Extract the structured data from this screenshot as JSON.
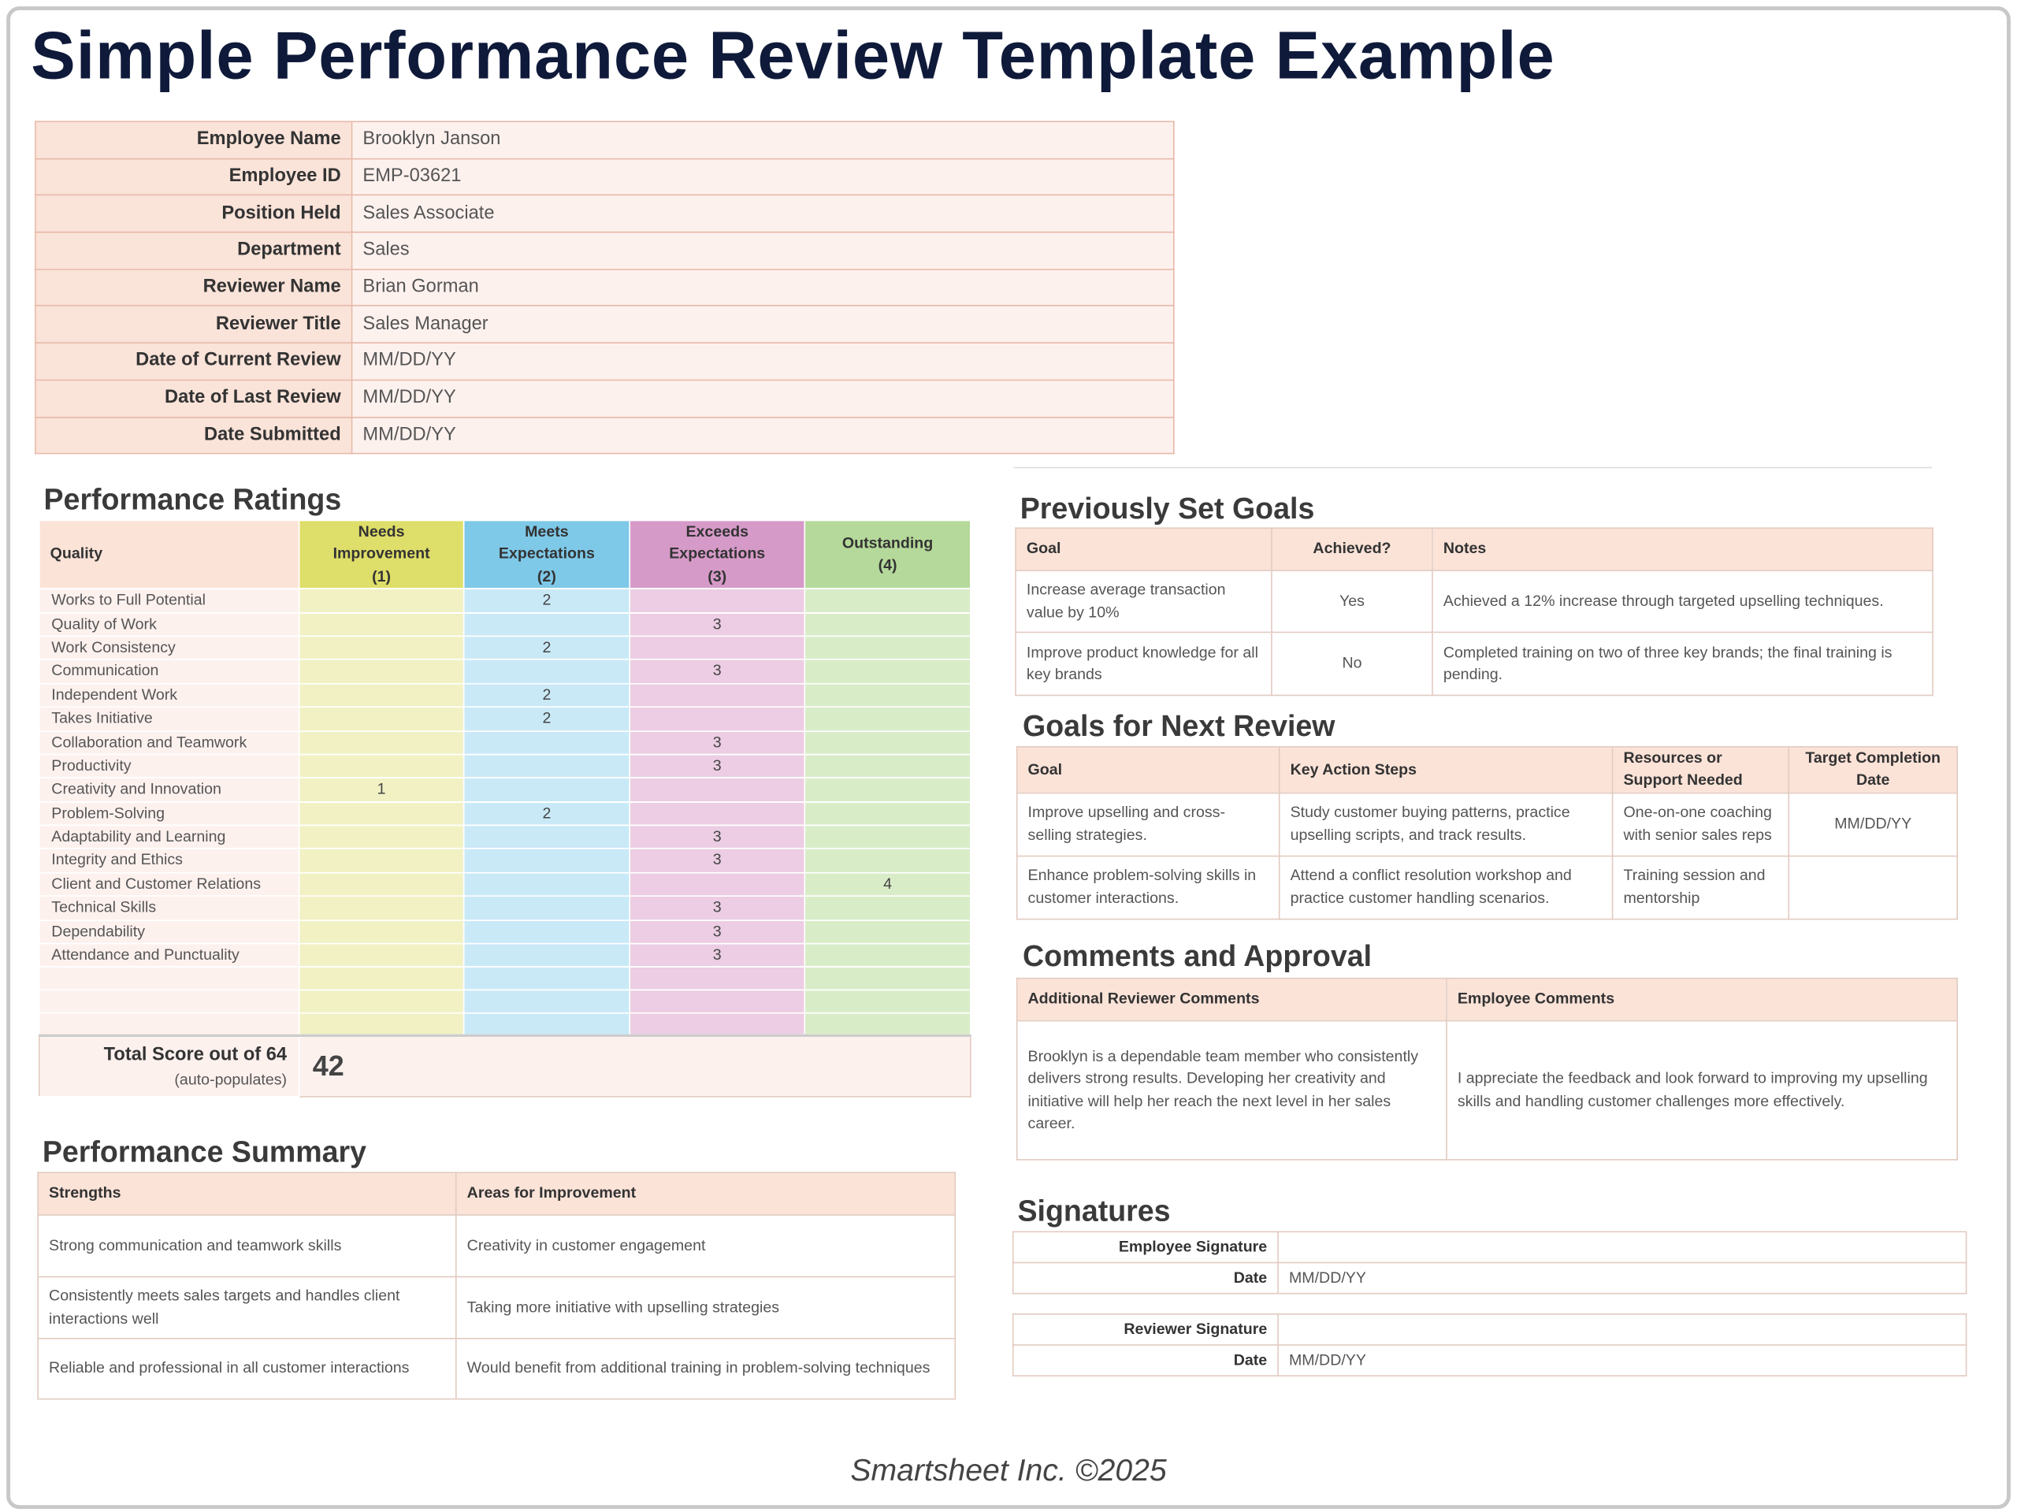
{
  "header": {
    "title": "Simple Performance Review Template Example",
    "footer": "Smartsheet Inc. ©2025"
  },
  "employee_info": {
    "rows": [
      [
        "Employee Name",
        "Brooklyn Janson"
      ],
      [
        "Employee ID",
        "EMP-03621"
      ],
      [
        "Position Held",
        "Sales Associate"
      ],
      [
        "Department",
        "Sales"
      ],
      [
        "Reviewer Name",
        "Brian Gorman"
      ],
      [
        "Reviewer Title",
        "Sales Manager"
      ],
      [
        "Date of Current Review",
        "MM/DD/YY"
      ],
      [
        "Date of Last Review",
        "MM/DD/YY"
      ],
      [
        "Date Submitted",
        "MM/DD/YY"
      ]
    ]
  },
  "performance_ratings": {
    "title": "Performance Ratings",
    "quality_header": "Quality",
    "levels": [
      {
        "label": "Needs Improvement",
        "score": "(1)"
      },
      {
        "label": "Meets Expectations",
        "score": "(2)"
      },
      {
        "label": "Exceeds Expectations",
        "score": "(3)"
      },
      {
        "label": "Outstanding",
        "score": "(4)"
      }
    ],
    "rows": [
      {
        "quality": "Works to Full Potential",
        "rating": 2
      },
      {
        "quality": "Quality of Work",
        "rating": 3
      },
      {
        "quality": "Work Consistency",
        "rating": 2
      },
      {
        "quality": "Communication",
        "rating": 3
      },
      {
        "quality": "Independent Work",
        "rating": 2
      },
      {
        "quality": "Takes Initiative",
        "rating": 2
      },
      {
        "quality": "Collaboration and Teamwork",
        "rating": 3
      },
      {
        "quality": "Productivity",
        "rating": 3
      },
      {
        "quality": "Creativity and Innovation",
        "rating": 1
      },
      {
        "quality": "Problem-Solving",
        "rating": 2
      },
      {
        "quality": "Adaptability and Learning",
        "rating": 3
      },
      {
        "quality": "Integrity and Ethics",
        "rating": 3
      },
      {
        "quality": "Client and Customer Relations",
        "rating": 4
      },
      {
        "quality": "Technical Skills",
        "rating": 3
      },
      {
        "quality": "Dependability",
        "rating": 3
      },
      {
        "quality": "Attendance and Punctuality",
        "rating": 3
      }
    ],
    "total": {
      "label": "Total Score out of 64",
      "note": "(auto-populates)",
      "value": 42
    }
  },
  "performance_summary": {
    "title": "Performance Summary",
    "headers": [
      "Strengths",
      "Areas for Improvement"
    ],
    "rows": [
      [
        "Strong communication and teamwork skills",
        "Creativity in customer engagement"
      ],
      [
        "Consistently meets sales targets and handles client interactions well",
        "Taking more initiative with upselling strategies"
      ],
      [
        "Reliable and professional in all customer interactions",
        "Would benefit from additional training in problem-solving techniques"
      ]
    ]
  },
  "previous_goals": {
    "title": "Previously Set Goals",
    "headers": [
      "Goal",
      "Achieved?",
      "Notes"
    ],
    "rows": [
      [
        "Increase average transaction value by 10%",
        "Yes",
        "Achieved a 12% increase through targeted upselling techniques."
      ],
      [
        "Improve product knowledge for all key brands",
        "No",
        "Completed training on two of three key brands; the final training is pending."
      ]
    ]
  },
  "next_goals": {
    "title": "Goals for Next Review",
    "headers": [
      "Goal",
      "Key Action Steps",
      "Resources or Support Needed",
      "Target Completion Date"
    ],
    "rows": [
      [
        "Improve upselling and cross-selling strategies.",
        "Study customer buying patterns, practice upselling scripts, and track results.",
        "One-on-one coaching with senior sales reps",
        "MM/DD/YY"
      ],
      [
        "Enhance problem-solving skills in customer interactions.",
        "Attend a conflict resolution workshop and practice customer handling scenarios.",
        "Training session and mentorship"
      ]
    ]
  },
  "comments": {
    "title": "Comments and Approval",
    "headers": [
      "Additional Reviewer Comments",
      "Employee Comments"
    ],
    "rows": [
      [
        "Brooklyn is a dependable team member who consistently delivers strong results. Developing her creativity and initiative will help her reach the next level in her sales career.",
        "I appreciate the feedback and look forward to improving my upselling skills and handling customer challenges more effectively."
      ]
    ]
  },
  "signatures": {
    "title": "Signatures",
    "blocks": [
      {
        "rows": [
          [
            "Employee Signature"
          ],
          [
            "Date",
            "MM/DD/YY"
          ]
        ]
      },
      {
        "rows": [
          [
            "Reviewer Signature"
          ],
          [
            "Date",
            "MM/DD/YY"
          ]
        ]
      }
    ]
  }
}
